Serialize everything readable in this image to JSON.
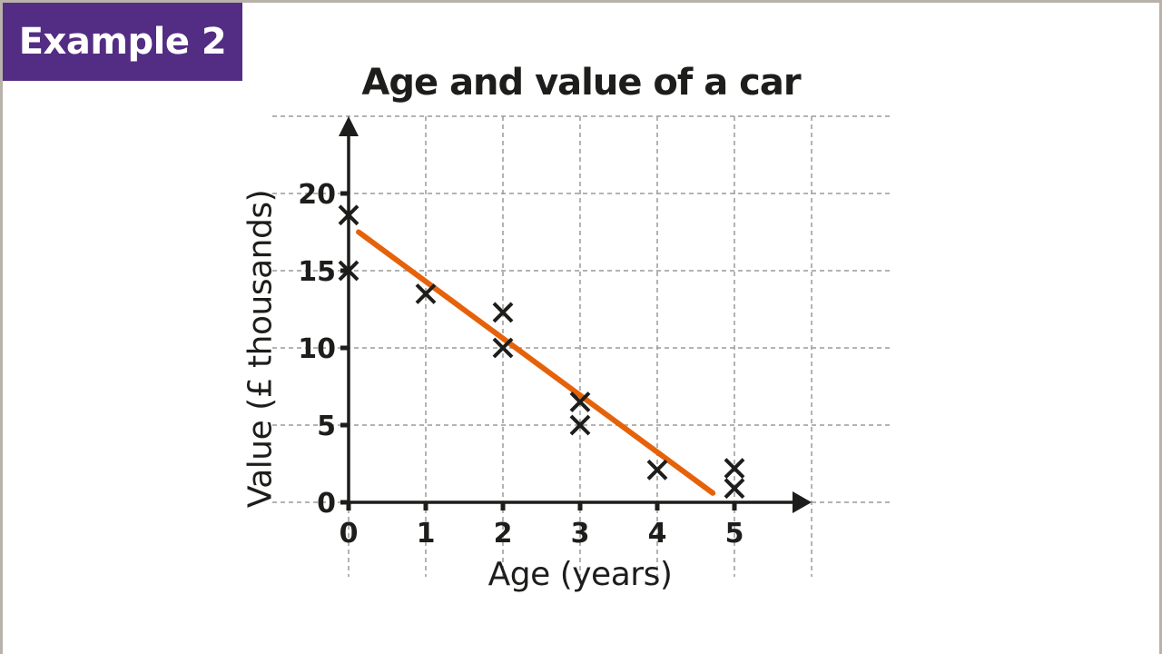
{
  "badge": {
    "label": "Example 2",
    "color": "#532d84"
  },
  "chart_data": {
    "type": "scatter",
    "title": "Age and value of a car",
    "xlabel": "Age (years)",
    "ylabel": "Value (£ thousands)",
    "xlim": [
      0,
      6
    ],
    "ylim": [
      0,
      25
    ],
    "x_ticks": [
      0,
      1,
      2,
      3,
      4,
      5
    ],
    "y_ticks": [
      0,
      5,
      10,
      15,
      20
    ],
    "grid": true,
    "legend": null,
    "series": [
      {
        "name": "cars",
        "marker": "x",
        "color": "#1d1d1b",
        "points": [
          {
            "x": 0,
            "y": 18.6
          },
          {
            "x": 0,
            "y": 15
          },
          {
            "x": 1,
            "y": 13.5
          },
          {
            "x": 2,
            "y": 12.3
          },
          {
            "x": 2,
            "y": 10
          },
          {
            "x": 3,
            "y": 6.5
          },
          {
            "x": 3,
            "y": 5
          },
          {
            "x": 4,
            "y": 2.1
          },
          {
            "x": 5,
            "y": 2.2
          },
          {
            "x": 5,
            "y": 0.9
          }
        ]
      }
    ],
    "line_of_best_fit": {
      "color": "#e5620a",
      "start": {
        "x": 0.13,
        "y": 17.5
      },
      "end": {
        "x": 4.72,
        "y": 0.6
      }
    }
  }
}
